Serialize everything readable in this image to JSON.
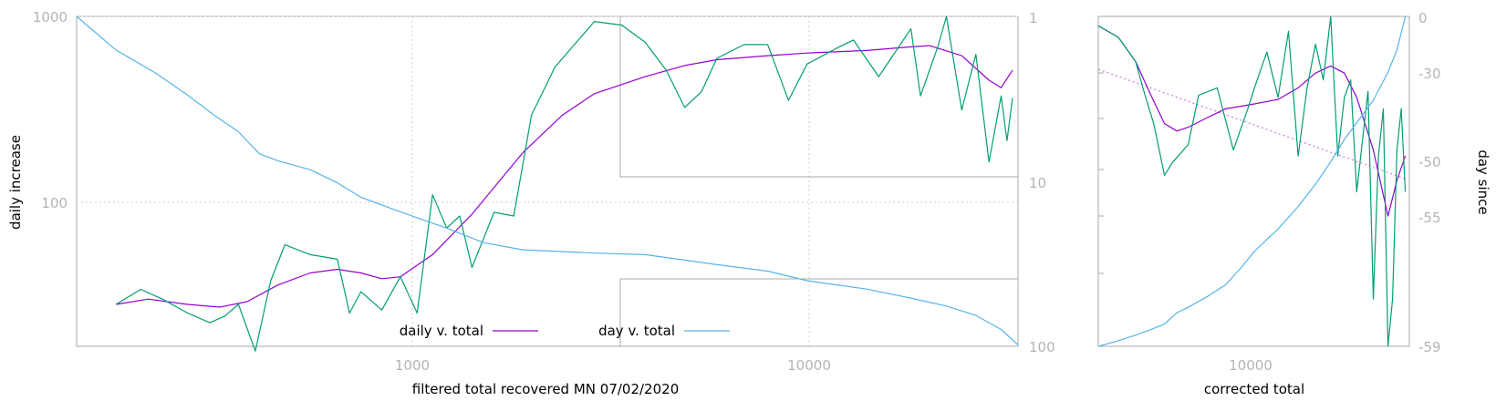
{
  "chart_data": [
    {
      "type": "line",
      "xlabel": "filtered total recovered MN 07/02/2020",
      "ylabel": "daily increase",
      "y2label": "",
      "x_scale": "log",
      "y_scale": "log",
      "y2_scale": "log",
      "y2_inverted": true,
      "xlim": [
        160,
        33000
      ],
      "ylim": [
        18,
        1000
      ],
      "y2lim": [
        1,
        100
      ],
      "x_tick_labels": [
        "1000",
        "10000"
      ],
      "y_tick_labels": [
        "1000",
        "100"
      ],
      "y2_tick_labels": [
        "1",
        "10",
        "100"
      ],
      "grid": true,
      "legend_position": "bottom-center",
      "series": [
        {
          "name": "daily v. total",
          "color": "#9400d3",
          "axis": "y",
          "x": [
            200,
            240,
            300,
            360,
            420,
            500,
            600,
            700,
            800,
            900,
            1000,
            1200,
            1500,
            2000,
            2500,
            3000,
            4000,
            5000,
            6000,
            8000,
            10000,
            14000,
            18000,
            20000,
            24000,
            28000,
            30000,
            32000
          ],
          "y": [
            30,
            32,
            30,
            29,
            31,
            38,
            44,
            46,
            44,
            41,
            42,
            55,
            90,
            190,
            300,
            390,
            480,
            550,
            590,
            620,
            640,
            660,
            690,
            700,
            620,
            460,
            420,
            520
          ]
        },
        {
          "name": "",
          "color": "#009e73",
          "axis": "y",
          "x": [
            200,
            230,
            260,
            300,
            340,
            370,
            400,
            440,
            480,
            520,
            600,
            700,
            750,
            800,
            900,
            1000,
            1100,
            1200,
            1300,
            1400,
            1500,
            1700,
            1900,
            2100,
            2400,
            3000,
            3500,
            4000,
            4500,
            5000,
            5500,
            6000,
            7000,
            8000,
            9000,
            10000,
            12000,
            13000,
            15000,
            16000,
            18000,
            19000,
            21000,
            22000,
            24000,
            26000,
            28000,
            30000,
            31000,
            32000
          ],
          "y": [
            30,
            36,
            32,
            27,
            24,
            26,
            30,
            17,
            40,
            62,
            55,
            52,
            27,
            35,
            28,
            42,
            27,
            114,
            76,
            88,
            47,
            92,
            88,
            300,
            540,
            940,
            900,
            730,
            520,
            330,
            400,
            600,
            710,
            710,
            360,
            560,
            690,
            750,
            480,
            590,
            860,
            380,
            700,
            1000,
            320,
            630,
            170,
            380,
            220,
            370
          ]
        },
        {
          "name": "day v. total",
          "color": "#56b4e9",
          "axis": "y2",
          "x": [
            160,
            200,
            250,
            300,
            350,
            400,
            450,
            500,
            600,
            700,
            800,
            1000,
            1300,
            1600,
            2000,
            3000,
            4000,
            5000,
            6000,
            8000,
            10000,
            14000,
            18000,
            22000,
            26000,
            30000,
            33000
          ],
          "y": [
            1.0,
            1.6,
            2.2,
            3.0,
            4.0,
            5.0,
            6.8,
            7.5,
            8.5,
            10.2,
            12.5,
            15.3,
            19.2,
            23.5,
            26.0,
            27.2,
            27.8,
            30.0,
            32.0,
            35.0,
            40.0,
            45.0,
            51.0,
            57.0,
            65.0,
            79.0,
            98.0
          ]
        }
      ]
    },
    {
      "type": "line",
      "xlabel": "corrected total",
      "ylabel": "",
      "y2label": "day since",
      "x_scale": "log",
      "xlim": [
        3000,
        33000
      ],
      "x_tick_labels": [
        "10000"
      ],
      "y2_tick_labels": [
        "0",
        "-30",
        "-50",
        "-55",
        "-59"
      ],
      "series": [
        {
          "name": "",
          "color": "#9400d3",
          "axis": "y",
          "x": [
            3000,
            3500,
            4000,
            4500,
            5000,
            5500,
            6000,
            7000,
            8000,
            9000,
            10000,
            12000,
            14000,
            16000,
            18000,
            20000,
            22000,
            25000,
            28000,
            30000,
            32000
          ],
          "y": [
            1000,
            800,
            500,
            260,
            150,
            130,
            140,
            170,
            200,
            210,
            220,
            240,
            300,
            400,
            460,
            400,
            250,
            90,
            25,
            50,
            80
          ]
        },
        {
          "name": "",
          "color": "#009e73",
          "axis": "y",
          "x": [
            3000,
            3500,
            4000,
            4300,
            4600,
            5000,
            5300,
            6000,
            6500,
            7500,
            8500,
            9500,
            10000,
            11000,
            12000,
            13000,
            14000,
            15000,
            16000,
            17000,
            18000,
            19000,
            20000,
            21000,
            22000,
            23000,
            24000,
            25000,
            26000,
            27000,
            28000,
            29000,
            30000,
            31000,
            32000
          ],
          "y": [
            1000,
            800,
            500,
            260,
            150,
            55,
            70,
            100,
            260,
            300,
            90,
            200,
            300,
            600,
            250,
            900,
            80,
            300,
            700,
            350,
            1200,
            80,
            250,
            350,
            40,
            110,
            280,
            5,
            80,
            200,
            2,
            5,
            90,
            200,
            40
          ]
        },
        {
          "name": "",
          "color": "#56b4e9",
          "axis": "y2",
          "x": [
            3000,
            3500,
            4000,
            4500,
            5000,
            5500,
            6000,
            7000,
            8000,
            9000,
            10000,
            12000,
            14000,
            16000,
            18000,
            20000,
            22000,
            25000,
            28000,
            30000,
            32000
          ],
          "y": [
            -59,
            -58,
            -57,
            -56,
            -55,
            -53,
            -52,
            -50,
            -48,
            -45,
            -42,
            -38,
            -34,
            -30,
            -26,
            -22,
            -19,
            -15,
            -10,
            -6,
            0
          ]
        }
      ]
    }
  ]
}
